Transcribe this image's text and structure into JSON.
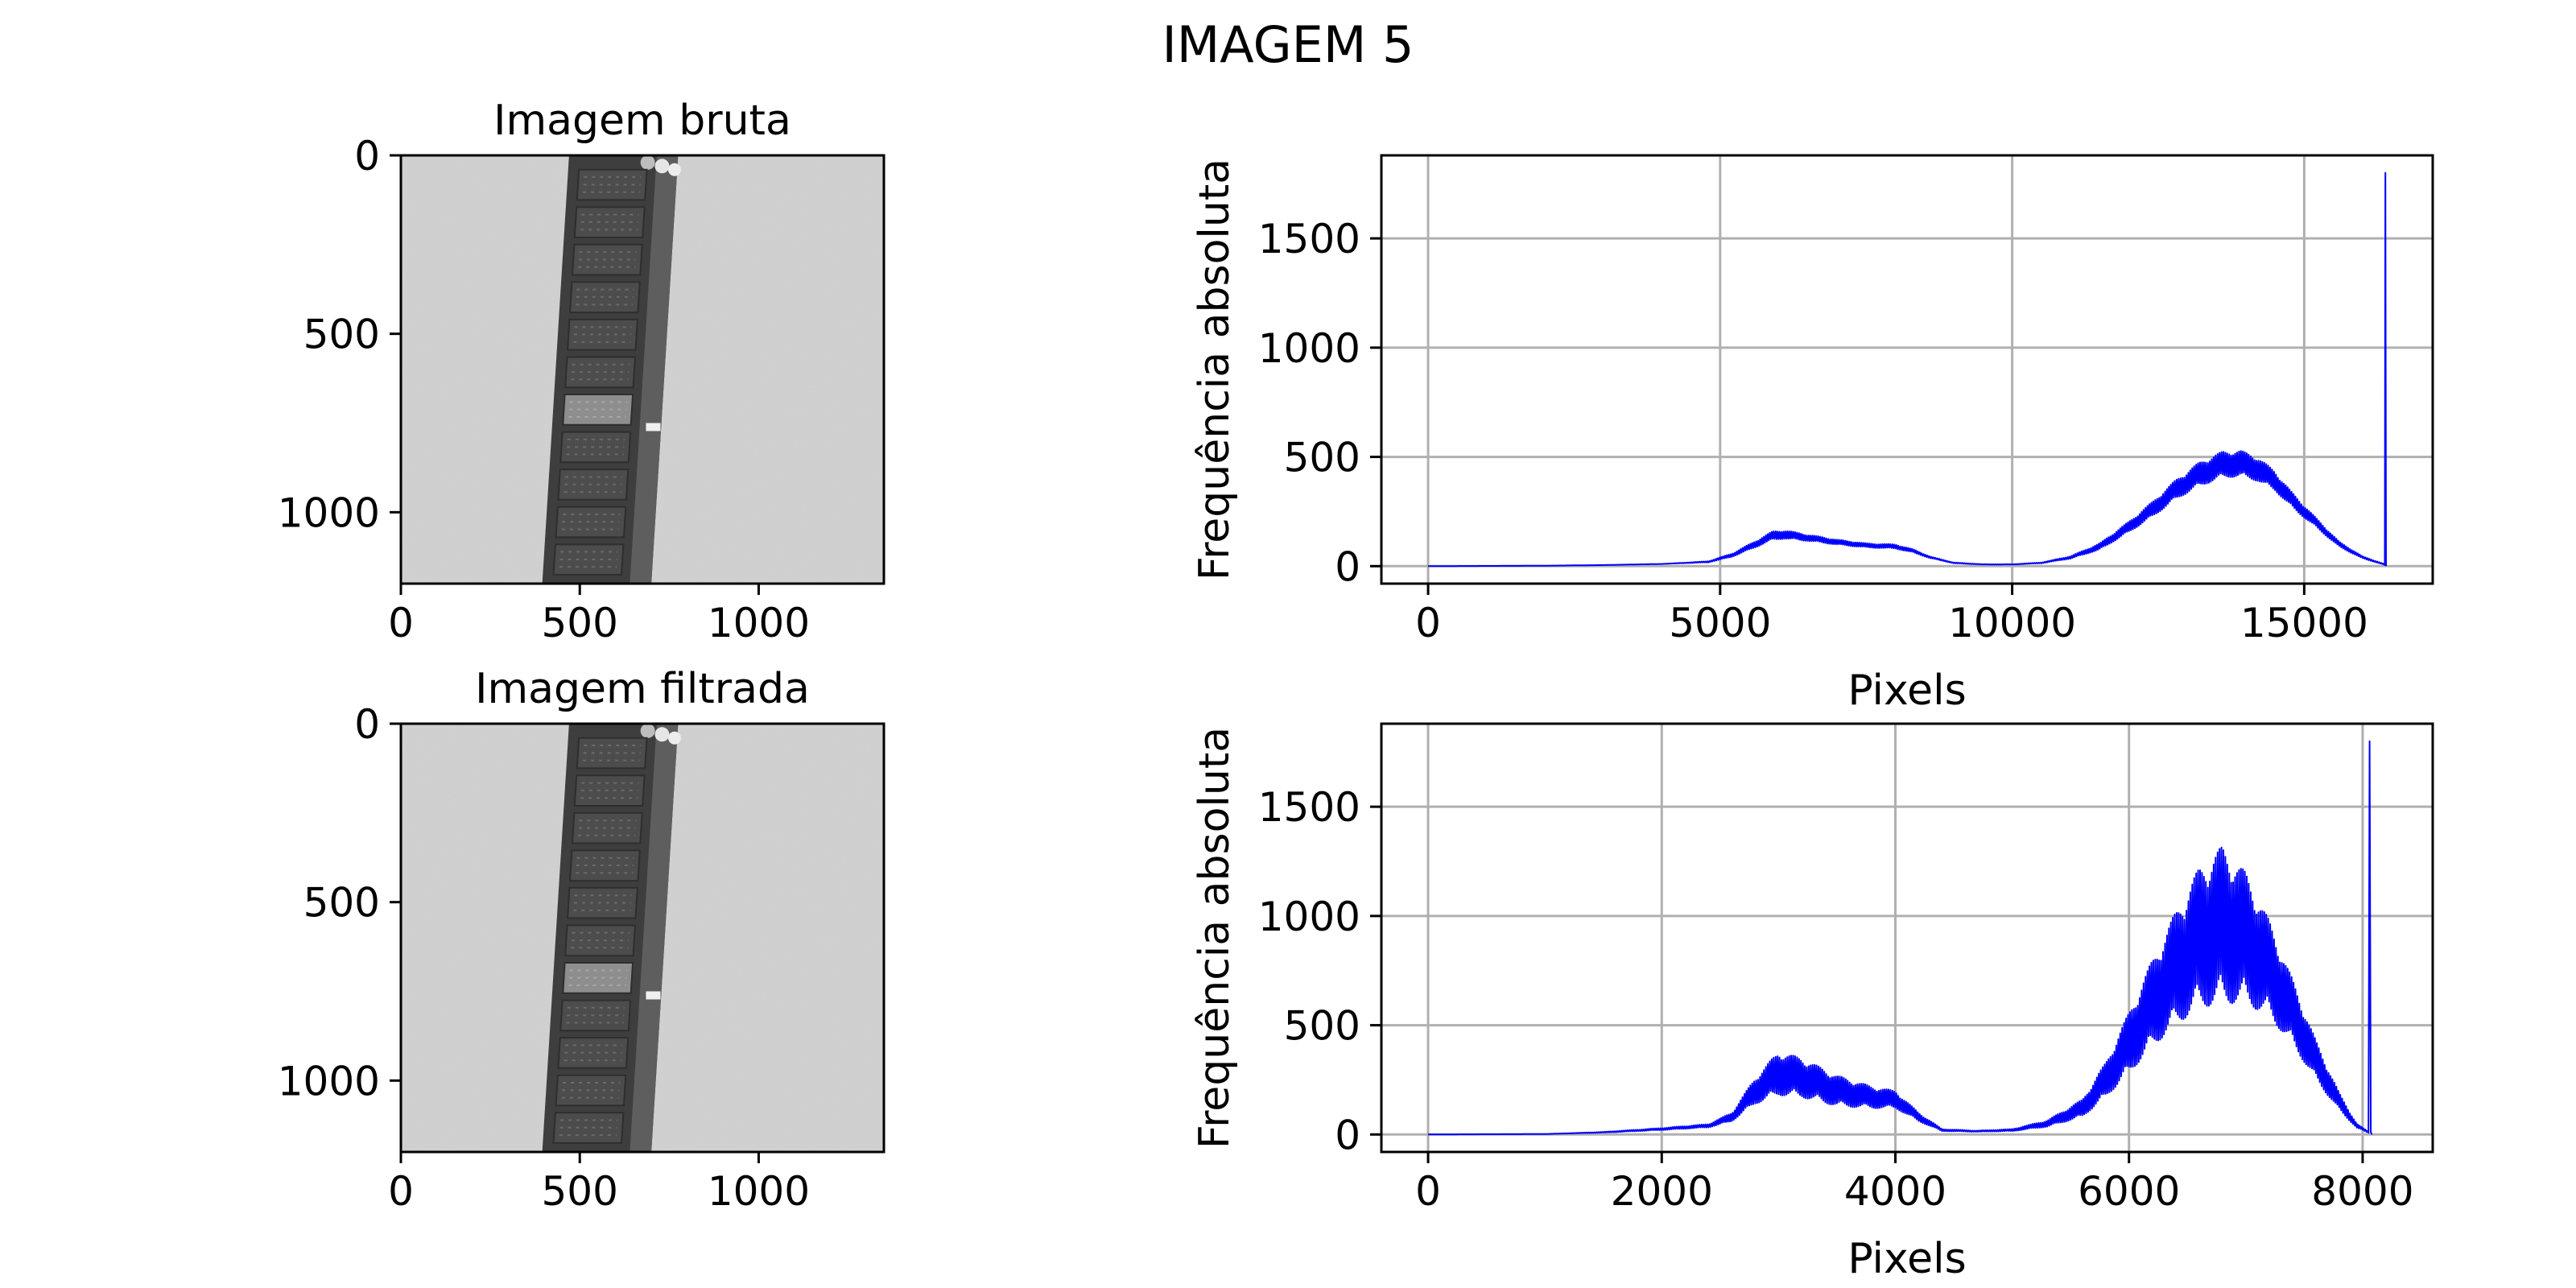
{
  "figure": {
    "title": "IMAGEM 5"
  },
  "chart_data": [
    {
      "type": "image",
      "title": "Imagem bruta",
      "xticks": [
        "0",
        "500",
        "1000"
      ],
      "yticks": [
        "0",
        "500",
        "1000"
      ],
      "xlim": [
        0,
        1350
      ],
      "ylim": [
        1200,
        0
      ],
      "colormap": "gray",
      "content": "x-ray of a memory module strip"
    },
    {
      "type": "line",
      "title": "",
      "xlabel": "Pixels",
      "ylabel": "Frequência absoluta",
      "xticks": [
        "0",
        "5000",
        "10000",
        "15000"
      ],
      "yticks": [
        "0",
        "500",
        "1000",
        "1500"
      ],
      "xlim": [
        -800,
        17200
      ],
      "ylim": [
        -80,
        1880
      ],
      "grid": true,
      "color": "#0000ff",
      "series": [
        {
          "x": [
            0,
            2000,
            3000,
            4000,
            4800,
            5200,
            5600,
            5900,
            6100,
            6500,
            7000,
            7500,
            8000,
            8300,
            8600,
            9000,
            9500,
            10000,
            10500,
            11000,
            11500,
            12000,
            12400,
            12800,
            13200,
            13600,
            13900,
            14200,
            14500,
            14800,
            15200,
            15600,
            16000,
            16350,
            16380,
            16390,
            16400
          ],
          "y": [
            0,
            2,
            5,
            10,
            20,
            50,
            100,
            140,
            145,
            130,
            110,
            95,
            90,
            70,
            40,
            15,
            8,
            8,
            15,
            40,
            90,
            180,
            260,
            350,
            420,
            465,
            470,
            445,
            390,
            300,
            200,
            100,
            40,
            10,
            5,
            1800,
            0
          ]
        }
      ],
      "band_half_width": [
        0,
        0,
        0,
        0,
        3,
        8,
        15,
        20,
        20,
        15,
        12,
        10,
        10,
        8,
        4,
        2,
        1,
        1,
        2,
        6,
        15,
        25,
        35,
        45,
        55,
        60,
        60,
        55,
        45,
        35,
        22,
        12,
        5,
        2,
        0,
        0,
        0
      ]
    },
    {
      "type": "image",
      "title": "Imagem filtrada",
      "xticks": [
        "0",
        "500",
        "1000"
      ],
      "yticks": [
        "0",
        "500",
        "1000"
      ],
      "xlim": [
        0,
        1350
      ],
      "ylim": [
        1200,
        0
      ],
      "colormap": "gray",
      "content": "x-ray of a memory module strip (filtered)"
    },
    {
      "type": "line",
      "title": "",
      "xlabel": "Pixels",
      "ylabel": "Frequência absoluta",
      "xticks": [
        "0",
        "2000",
        "4000",
        "6000",
        "8000"
      ],
      "yticks": [
        "0",
        "500",
        "1000",
        "1500"
      ],
      "xlim": [
        -400,
        8600
      ],
      "ylim": [
        -80,
        1880
      ],
      "grid": true,
      "color": "#0000ff",
      "series": [
        {
          "x": [
            0,
            1000,
            1500,
            2000,
            2400,
            2600,
            2800,
            3000,
            3200,
            3500,
            3800,
            4000,
            4200,
            4400,
            4700,
            5000,
            5300,
            5600,
            5800,
            6000,
            6200,
            6400,
            6600,
            6800,
            7000,
            7200,
            7400,
            7600,
            7800,
            7950,
            8050,
            8060,
            8070,
            8080
          ],
          "y": [
            0,
            2,
            10,
            25,
            40,
            80,
            200,
            280,
            260,
            200,
            170,
            160,
            80,
            20,
            15,
            20,
            50,
            120,
            250,
            420,
            600,
            760,
            900,
            960,
            900,
            760,
            560,
            340,
            150,
            40,
            10,
            1800,
            10,
            0
          ]
        }
      ],
      "band_half_width": [
        0,
        0,
        2,
        5,
        8,
        20,
        60,
        100,
        90,
        70,
        50,
        40,
        20,
        5,
        3,
        5,
        15,
        40,
        80,
        140,
        200,
        260,
        320,
        360,
        300,
        220,
        150,
        90,
        40,
        10,
        3,
        0,
        0,
        0
      ]
    }
  ]
}
